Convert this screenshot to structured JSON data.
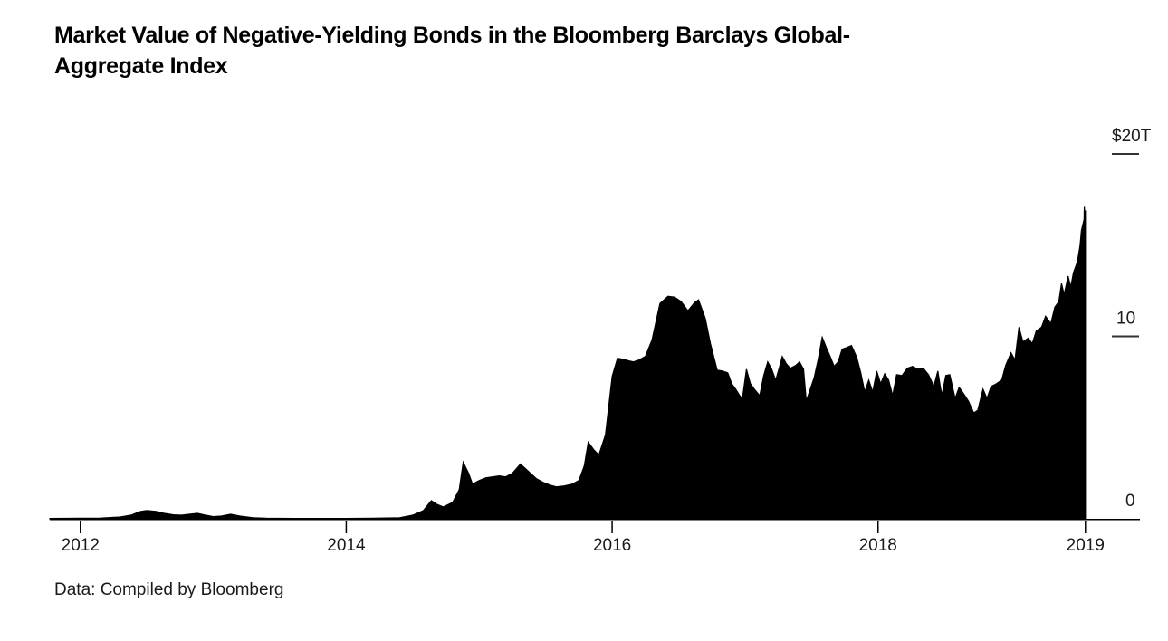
{
  "header": {
    "title_full": "Market Value of Negative-Yielding Bonds in the Bloomberg Barclays Global-Aggregate Index",
    "title_lines": [
      "Market Value of Negative-Yielding Bonds in the Bloomberg Barclays Global-",
      "Aggregate Index"
    ]
  },
  "footer": {
    "source": "Data: Compiled by Bloomberg"
  },
  "chart_data": {
    "type": "area",
    "title": "Market Value of Negative-Yielding Bonds in the Bloomberg Barclays Global-Aggregate Index",
    "series_name": "Market value of negative-yielding bonds",
    "unit": "USD trillions",
    "xlabel": "",
    "ylabel": "",
    "x_domain": [
      2011.77,
      2019.97
    ],
    "y_domain": [
      0,
      20
    ],
    "grid": false,
    "legend": "none",
    "area_color": "#000000",
    "background": "#ffffff",
    "axis_text_color": "#1a1a1a",
    "x_ticks": [
      {
        "label": "2012",
        "year": 2012
      },
      {
        "label": "2014",
        "year": 2014
      },
      {
        "label": "2016",
        "year": 2016
      },
      {
        "label": "2018",
        "year": 2018
      },
      {
        "label": "2019",
        "year": 2019.56,
        "note": "tick placed at end of data (mid-2019)"
      }
    ],
    "y_ticks": [
      {
        "label": "$20T",
        "value": 20,
        "dash": true
      },
      {
        "label": "10",
        "value": 10,
        "dash": true
      },
      {
        "label": "0",
        "value": 0,
        "dash": false
      }
    ],
    "points": [
      [
        2011.77,
        0.02
      ],
      [
        2012.0,
        0.03
      ],
      [
        2012.15,
        0.04
      ],
      [
        2012.3,
        0.1
      ],
      [
        2012.38,
        0.2
      ],
      [
        2012.45,
        0.4
      ],
      [
        2012.5,
        0.45
      ],
      [
        2012.57,
        0.4
      ],
      [
        2012.63,
        0.3
      ],
      [
        2012.7,
        0.22
      ],
      [
        2012.76,
        0.2
      ],
      [
        2012.82,
        0.25
      ],
      [
        2012.88,
        0.3
      ],
      [
        2012.93,
        0.22
      ],
      [
        2013.0,
        0.12
      ],
      [
        2013.06,
        0.15
      ],
      [
        2013.13,
        0.25
      ],
      [
        2013.2,
        0.15
      ],
      [
        2013.3,
        0.06
      ],
      [
        2013.4,
        0.03
      ],
      [
        2013.6,
        0.02
      ],
      [
        2013.8,
        0.02
      ],
      [
        2014.0,
        0.02
      ],
      [
        2014.2,
        0.03
      ],
      [
        2014.4,
        0.06
      ],
      [
        2014.5,
        0.2
      ],
      [
        2014.58,
        0.45
      ],
      [
        2014.64,
        1.0
      ],
      [
        2014.68,
        0.8
      ],
      [
        2014.73,
        0.65
      ],
      [
        2014.8,
        0.9
      ],
      [
        2014.85,
        1.6
      ],
      [
        2014.88,
        3.1
      ],
      [
        2014.92,
        2.5
      ],
      [
        2014.95,
        1.9
      ],
      [
        2015.0,
        2.1
      ],
      [
        2015.05,
        2.25
      ],
      [
        2015.1,
        2.3
      ],
      [
        2015.15,
        2.35
      ],
      [
        2015.2,
        2.3
      ],
      [
        2015.25,
        2.5
      ],
      [
        2015.31,
        3.0
      ],
      [
        2015.37,
        2.6
      ],
      [
        2015.43,
        2.2
      ],
      [
        2015.48,
        2.0
      ],
      [
        2015.53,
        1.85
      ],
      [
        2015.58,
        1.75
      ],
      [
        2015.64,
        1.8
      ],
      [
        2015.7,
        1.9
      ],
      [
        2015.75,
        2.1
      ],
      [
        2015.79,
        2.9
      ],
      [
        2015.82,
        4.2
      ],
      [
        2015.86,
        3.8
      ],
      [
        2015.9,
        3.5
      ],
      [
        2015.95,
        4.6
      ],
      [
        2016.0,
        7.8
      ],
      [
        2016.04,
        8.8
      ],
      [
        2016.08,
        8.75
      ],
      [
        2016.13,
        8.65
      ],
      [
        2016.16,
        8.6
      ],
      [
        2016.2,
        8.7
      ],
      [
        2016.25,
        8.9
      ],
      [
        2016.3,
        9.8
      ],
      [
        2016.36,
        11.8
      ],
      [
        2016.42,
        12.2
      ],
      [
        2016.47,
        12.15
      ],
      [
        2016.52,
        11.9
      ],
      [
        2016.57,
        11.4
      ],
      [
        2016.62,
        11.85
      ],
      [
        2016.65,
        12.0
      ],
      [
        2016.7,
        11.0
      ],
      [
        2016.74,
        9.6
      ],
      [
        2016.79,
        8.15
      ],
      [
        2016.83,
        8.1
      ],
      [
        2016.87,
        8.0
      ],
      [
        2016.9,
        7.4
      ],
      [
        2016.93,
        7.1
      ],
      [
        2016.96,
        6.75
      ],
      [
        2016.98,
        6.6
      ],
      [
        2017.01,
        8.2
      ],
      [
        2017.04,
        7.4
      ],
      [
        2017.07,
        7.1
      ],
      [
        2017.11,
        6.75
      ],
      [
        2017.14,
        7.85
      ],
      [
        2017.17,
        8.6
      ],
      [
        2017.2,
        8.2
      ],
      [
        2017.23,
        7.6
      ],
      [
        2017.26,
        8.35
      ],
      [
        2017.28,
        8.9
      ],
      [
        2017.31,
        8.5
      ],
      [
        2017.34,
        8.25
      ],
      [
        2017.38,
        8.4
      ],
      [
        2017.41,
        8.6
      ],
      [
        2017.44,
        8.2
      ],
      [
        2017.46,
        6.45
      ],
      [
        2017.49,
        7.1
      ],
      [
        2017.52,
        7.75
      ],
      [
        2017.55,
        8.75
      ],
      [
        2017.58,
        9.95
      ],
      [
        2017.61,
        9.4
      ],
      [
        2017.64,
        8.9
      ],
      [
        2017.67,
        8.35
      ],
      [
        2017.7,
        8.6
      ],
      [
        2017.73,
        9.3
      ],
      [
        2017.77,
        9.4
      ],
      [
        2017.8,
        9.5
      ],
      [
        2017.84,
        8.85
      ],
      [
        2017.87,
        8.0
      ],
      [
        2017.9,
        6.95
      ],
      [
        2017.93,
        7.6
      ],
      [
        2017.96,
        6.95
      ],
      [
        2017.99,
        8.1
      ],
      [
        2018.02,
        7.4
      ],
      [
        2018.05,
        7.95
      ],
      [
        2018.08,
        7.6
      ],
      [
        2018.11,
        6.75
      ],
      [
        2018.14,
        7.9
      ],
      [
        2018.18,
        7.85
      ],
      [
        2018.22,
        8.25
      ],
      [
        2018.26,
        8.35
      ],
      [
        2018.3,
        8.2
      ],
      [
        2018.34,
        8.25
      ],
      [
        2018.38,
        7.9
      ],
      [
        2018.42,
        7.25
      ],
      [
        2018.45,
        8.1
      ],
      [
        2018.48,
        6.75
      ],
      [
        2018.51,
        7.85
      ],
      [
        2018.54,
        7.9
      ],
      [
        2018.58,
        6.6
      ],
      [
        2018.61,
        7.2
      ],
      [
        2018.64,
        6.9
      ],
      [
        2018.68,
        6.45
      ],
      [
        2018.72,
        5.8
      ],
      [
        2018.75,
        5.95
      ],
      [
        2018.79,
        7.1
      ],
      [
        2018.82,
        6.6
      ],
      [
        2018.85,
        7.25
      ],
      [
        2018.89,
        7.4
      ],
      [
        2018.93,
        7.6
      ],
      [
        2018.96,
        8.4
      ],
      [
        2019.0,
        9.1
      ],
      [
        2019.03,
        8.7
      ],
      [
        2019.06,
        10.5
      ],
      [
        2019.09,
        9.7
      ],
      [
        2019.13,
        9.9
      ],
      [
        2019.16,
        9.6
      ],
      [
        2019.19,
        10.3
      ],
      [
        2019.23,
        10.5
      ],
      [
        2019.26,
        11.1
      ],
      [
        2019.3,
        10.7
      ],
      [
        2019.33,
        11.6
      ],
      [
        2019.36,
        11.9
      ],
      [
        2019.38,
        12.9
      ],
      [
        2019.4,
        12.3
      ],
      [
        2019.43,
        13.3
      ],
      [
        2019.45,
        12.7
      ],
      [
        2019.47,
        13.5
      ],
      [
        2019.5,
        14.1
      ],
      [
        2019.52,
        15.0
      ],
      [
        2019.53,
        15.8
      ],
      [
        2019.55,
        16.4
      ],
      [
        2019.552,
        17.1
      ],
      [
        2019.557,
        16.5
      ],
      [
        2019.56,
        16.9
      ]
    ]
  }
}
